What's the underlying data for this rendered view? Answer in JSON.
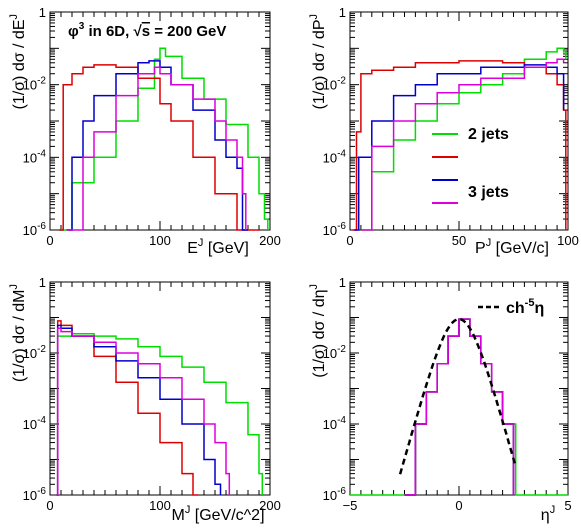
{
  "chart_data": [
    {
      "type": "line",
      "xlabel_base": "E",
      "xlabel_sup": "J",
      "xlabel_unit": "[GeV]",
      "ylabel_pre": "(1/σ) dσ / dE",
      "ylabel_sup": "J",
      "xlim": [
        0,
        200
      ],
      "ylim": [
        1e-06,
        1
      ],
      "yscale": "log",
      "xticks": [
        "0",
        "100",
        "200"
      ],
      "yticks": [
        {
          "base": "1",
          "exp": ""
        },
        {
          "base": "10",
          "exp": "-2"
        },
        {
          "base": "10",
          "exp": "-4"
        },
        {
          "base": "10",
          "exp": "-6"
        }
      ],
      "annotation": {
        "phi": "φ",
        "phi_exp": "3",
        "mid": " in 6D,  ",
        "sqrt": "√",
        "s": "s",
        "rest": " = 200 GeV"
      },
      "series": [
        {
          "color": "#00dd00",
          "x": [
            8,
            20,
            40,
            60,
            80,
            95,
            100,
            105,
            120,
            140,
            160,
            180,
            190,
            195,
            198
          ],
          "y": [
            1e-06,
            2e-05,
            0.0001,
            0.001,
            0.008,
            0.05,
            0.1,
            0.06,
            0.015,
            0.004,
            0.0008,
            0.0001,
            1e-05,
            2e-06,
            1e-06
          ]
        },
        {
          "color": "#dd0000",
          "x": [
            8,
            12,
            20,
            30,
            40,
            60,
            80,
            100,
            110,
            130,
            150,
            170,
            180,
            185,
            190
          ],
          "y": [
            1e-06,
            0.01,
            0.02,
            0.03,
            0.035,
            0.03,
            0.015,
            0.003,
            0.001,
            0.0001,
            1e-05,
            1e-06,
            1e-06,
            1e-06,
            1e-06
          ]
        },
        {
          "color": "#0000cc",
          "x": [
            15,
            20,
            30,
            40,
            60,
            80,
            90,
            100,
            110,
            130,
            150,
            160,
            170,
            175,
            180
          ],
          "y": [
            1e-06,
            0.0001,
            0.001,
            0.005,
            0.02,
            0.04,
            0.045,
            0.03,
            0.01,
            0.002,
            0.0003,
            0.0001,
            5e-05,
            1e-06,
            1e-06
          ]
        },
        {
          "color": "#dd00dd",
          "x": [
            15,
            30,
            40,
            60,
            80,
            95,
            100,
            110,
            130,
            150,
            160,
            170,
            175,
            178
          ],
          "y": [
            1e-06,
            0.0001,
            0.0005,
            0.005,
            0.02,
            0.03,
            0.02,
            0.01,
            0.004,
            0.001,
            0.0003,
            0.0001,
            1e-05,
            1e-06
          ]
        }
      ]
    },
    {
      "type": "line",
      "xlabel_base": "P",
      "xlabel_sup": "J",
      "xlabel_unit": "[GeV/c]",
      "ylabel_pre": "(1/σ) dσ / dP",
      "ylabel_sup": "J",
      "xlim": [
        0,
        100
      ],
      "ylim": [
        1e-06,
        1
      ],
      "yscale": "log",
      "xticks": [
        "0",
        "50",
        "100"
      ],
      "yticks": [
        {
          "base": "1",
          "exp": ""
        },
        {
          "base": "10",
          "exp": "-2"
        },
        {
          "base": "10",
          "exp": "-4"
        },
        {
          "base": "10",
          "exp": "-6"
        }
      ],
      "legend": [
        "2 jets",
        "3 jets"
      ],
      "series": [
        {
          "color": "#00dd00",
          "name": "2 jets",
          "x": [
            5,
            10,
            20,
            30,
            40,
            50,
            60,
            70,
            80,
            90,
            95,
            98,
            99
          ],
          "y": [
            1e-06,
            4e-05,
            0.0003,
            0.001,
            0.003,
            0.006,
            0.01,
            0.02,
            0.05,
            0.08,
            0.1,
            0.08,
            0.05
          ]
        },
        {
          "color": "#dd0000",
          "x": [
            1,
            3,
            5,
            10,
            20,
            30,
            50,
            70,
            80,
            90,
            95,
            98,
            99
          ],
          "y": [
            1e-06,
            0.0005,
            0.02,
            0.025,
            0.03,
            0.04,
            0.045,
            0.04,
            0.03,
            0.02,
            0.01,
            0.002,
            1e-06
          ]
        },
        {
          "color": "#0000cc",
          "x": [
            2,
            4,
            10,
            20,
            30,
            40,
            60,
            80,
            90,
            95,
            98
          ],
          "y": [
            1e-06,
            0.0001,
            0.001,
            0.005,
            0.01,
            0.02,
            0.03,
            0.035,
            0.03,
            0.02,
            0.002
          ]
        },
        {
          "color": "#dd00dd",
          "x": [
            5,
            10,
            20,
            30,
            40,
            50,
            60,
            80,
            90,
            95,
            98
          ],
          "y": [
            1e-06,
            0.0002,
            0.001,
            0.003,
            0.006,
            0.01,
            0.015,
            0.03,
            0.04,
            0.05,
            0.04
          ]
        }
      ]
    },
    {
      "type": "line",
      "xlabel_base": "M",
      "xlabel_sup": "J",
      "xlabel_unit": "[GeV/c^2]",
      "ylabel_pre": "(1/σ) dσ / dM",
      "ylabel_sup": "J",
      "xlim": [
        0,
        200
      ],
      "ylim": [
        1e-06,
        1
      ],
      "yscale": "log",
      "xticks": [
        "0",
        "100",
        "200"
      ],
      "yticks": [
        {
          "base": "1",
          "exp": ""
        },
        {
          "base": "10",
          "exp": "-2"
        },
        {
          "base": "10",
          "exp": "-4"
        },
        {
          "base": "10",
          "exp": "-6"
        }
      ],
      "series": [
        {
          "color": "#00dd00",
          "x": [
            6,
            7,
            20,
            40,
            60,
            80,
            100,
            120,
            140,
            160,
            180,
            190,
            193
          ],
          "y": [
            1e-06,
            0.03,
            0.035,
            0.03,
            0.025,
            0.015,
            0.008,
            0.004,
            0.0015,
            0.0004,
            5e-05,
            4e-06,
            1e-06
          ]
        },
        {
          "color": "#dd0000",
          "x": [
            6,
            7,
            10,
            20,
            40,
            60,
            80,
            100,
            120,
            130,
            135
          ],
          "y": [
            1e-06,
            0.08,
            0.06,
            0.03,
            0.008,
            0.0015,
            0.0002,
            3e-05,
            4e-06,
            1e-06,
            1e-06
          ]
        },
        {
          "color": "#0000cc",
          "x": [
            6,
            7,
            10,
            20,
            40,
            60,
            80,
            100,
            120,
            140,
            150,
            155
          ],
          "y": [
            1e-06,
            0.06,
            0.05,
            0.03,
            0.015,
            0.006,
            0.002,
            0.0005,
            0.0001,
            1e-05,
            2e-06,
            1e-06
          ]
        },
        {
          "color": "#dd00dd",
          "x": [
            6,
            7,
            10,
            20,
            40,
            60,
            80,
            100,
            120,
            140,
            150,
            160,
            163
          ],
          "y": [
            1e-06,
            0.05,
            0.04,
            0.03,
            0.02,
            0.01,
            0.005,
            0.002,
            0.0005,
            0.0001,
            3e-05,
            4e-06,
            1e-06
          ]
        }
      ]
    },
    {
      "type": "line",
      "xlabel_base": "η",
      "xlabel_sup": "J",
      "xlabel_unit": "",
      "ylabel_pre": "(1/σ) dσ / dη",
      "ylabel_sup": "J",
      "xlim": [
        -5,
        5
      ],
      "ylim": [
        1e-06,
        1
      ],
      "yscale": "log",
      "xticks": [
        "−5",
        "0",
        "5"
      ],
      "yticks": [
        {
          "base": "1",
          "exp": ""
        },
        {
          "base": "10",
          "exp": "-2"
        },
        {
          "base": "10",
          "exp": "-4"
        },
        {
          "base": "10",
          "exp": "-6"
        }
      ],
      "legend_fit": {
        "pre": "ch",
        "sup": "-5",
        "post": "η"
      },
      "series": [
        {
          "color": "#00dd00",
          "x": [
            -5,
            -2.6,
            -2,
            -1.5,
            -1,
            -0.5,
            0,
            0.5,
            1,
            1.5,
            2,
            2.6,
            5
          ],
          "y": [
            1e-06,
            1e-06,
            0.0001,
            0.0008,
            0.005,
            0.03,
            0.09,
            0.03,
            0.005,
            0.0008,
            0.0001,
            1e-06,
            1e-06
          ]
        },
        {
          "color": "#dd0000",
          "x": [
            -2.5,
            -2,
            -1.5,
            -1,
            -0.5,
            0,
            0.5,
            1,
            1.5,
            2,
            2.5
          ],
          "y": [
            1e-06,
            0.0001,
            0.0008,
            0.005,
            0.03,
            0.09,
            0.03,
            0.005,
            0.0008,
            0.0001,
            1e-06
          ]
        },
        {
          "color": "#0000cc",
          "x": [
            -2.5,
            -2,
            -1.5,
            -1,
            -0.5,
            0,
            0.5,
            1,
            1.5,
            2,
            2.5
          ],
          "y": [
            1e-06,
            0.0001,
            0.0008,
            0.005,
            0.03,
            0.09,
            0.03,
            0.005,
            0.0008,
            0.0001,
            1e-06
          ]
        },
        {
          "color": "#dd00dd",
          "x": [
            -2.5,
            -2,
            -1.5,
            -1,
            -0.5,
            0,
            0.5,
            1,
            1.5,
            2,
            2.5
          ],
          "y": [
            1e-06,
            0.0001,
            0.0008,
            0.005,
            0.03,
            0.09,
            0.03,
            0.005,
            0.0008,
            0.0001,
            1e-06
          ]
        }
      ]
    }
  ]
}
